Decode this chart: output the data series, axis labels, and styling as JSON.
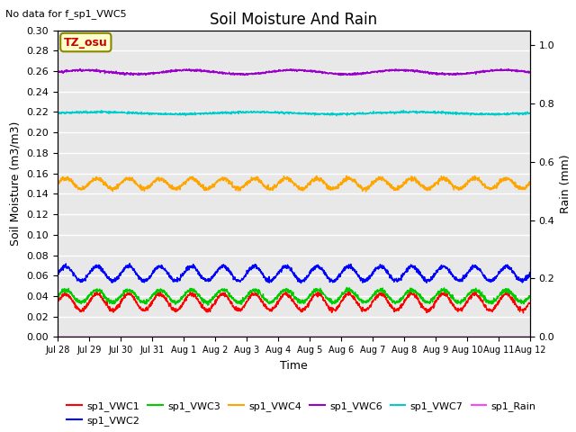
{
  "title": "Soil Moisture And Rain",
  "top_left_text": "No data for f_sp1_VWC5",
  "annotation_text": "TZ_osu",
  "xlabel": "Time",
  "ylabel_left": "Soil Moisture (m3/m3)",
  "ylabel_right": "Rain (mm)",
  "ylim_left": [
    0.0,
    0.3
  ],
  "ylim_right": [
    0.0,
    1.05
  ],
  "background_color": "#e8e8e8",
  "figure_background": "#ffffff",
  "tick_labels": [
    "Jul 28",
    "Jul 29",
    "Jul 30",
    "Jul 31",
    "Aug 1",
    "Aug 2",
    "Aug 3",
    "Aug 4",
    "Aug 5",
    "Aug 6",
    "Aug 7",
    "Aug 8",
    "Aug 9",
    "Aug 10",
    "Aug 11",
    "Aug 12"
  ],
  "series": {
    "sp1_VWC1": {
      "color": "#ff0000",
      "base": 0.034,
      "amp": 0.008,
      "freq": 1.0,
      "noise": 0.001
    },
    "sp1_VWC2": {
      "color": "#0000ff",
      "base": 0.062,
      "amp": 0.007,
      "freq": 1.0,
      "noise": 0.001
    },
    "sp1_VWC3": {
      "color": "#00cc00",
      "base": 0.04,
      "amp": 0.006,
      "freq": 1.0,
      "noise": 0.001
    },
    "sp1_VWC4": {
      "color": "#ffa500",
      "base": 0.15,
      "amp": 0.005,
      "freq": 1.0,
      "noise": 0.001
    },
    "sp1_VWC6": {
      "color": "#9900cc",
      "base": 0.259,
      "amp": 0.002,
      "freq": 0.3,
      "noise": 0.0005
    },
    "sp1_VWC7": {
      "color": "#00cccc",
      "base": 0.219,
      "amp": 0.001,
      "freq": 0.2,
      "noise": 0.0005
    },
    "sp1_Rain": {
      "color": "#ff44ff",
      "base": 0.0,
      "amp": 0.0,
      "freq": 0.0,
      "noise": 0.0
    }
  },
  "legend_entries": [
    {
      "label": "sp1_VWC1",
      "color": "#ff0000"
    },
    {
      "label": "sp1_VWC2",
      "color": "#0000ff"
    },
    {
      "label": "sp1_VWC3",
      "color": "#00cc00"
    },
    {
      "label": "sp1_VWC4",
      "color": "#ffa500"
    },
    {
      "label": "sp1_VWC6",
      "color": "#9900cc"
    },
    {
      "label": "sp1_VWC7",
      "color": "#00cccc"
    },
    {
      "label": "sp1_Rain",
      "color": "#ff44ff"
    }
  ],
  "yticks_left": [
    0.0,
    0.02,
    0.04,
    0.06,
    0.08,
    0.1,
    0.12,
    0.14,
    0.16,
    0.18,
    0.2,
    0.22,
    0.24,
    0.26,
    0.28,
    0.3
  ],
  "yticks_right": [
    0.0,
    0.2,
    0.4,
    0.6,
    0.8,
    1.0
  ]
}
